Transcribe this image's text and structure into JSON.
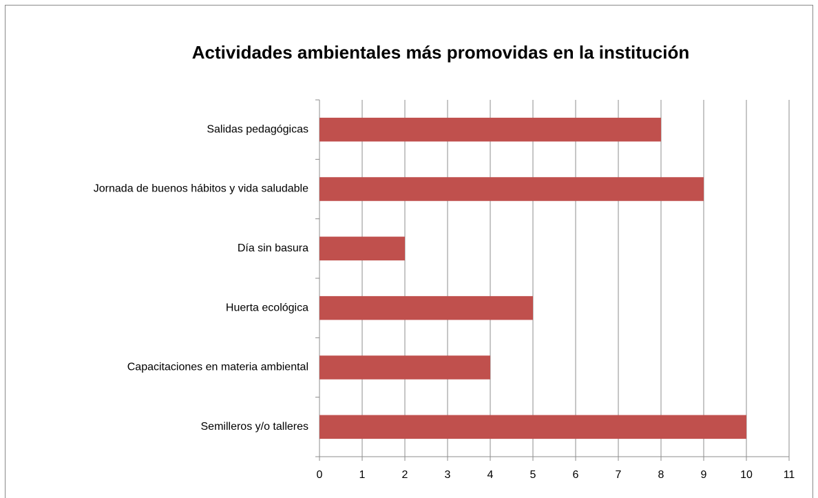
{
  "chart_data": {
    "type": "hbar",
    "title": "Actividades ambientales más promovidas en la institución",
    "categories": [
      "Salidas pedagógicas",
      "Jornada de buenos hábitos y vida saludable",
      "Día sin basura",
      "Huerta ecológica",
      "Capacitaciones en materia ambiental",
      "Semilleros y/o talleres"
    ],
    "values": [
      8,
      9,
      2,
      5,
      4,
      10
    ],
    "color": "#c0504d",
    "xlim": [
      0,
      11
    ],
    "xticks": [
      0,
      1,
      2,
      3,
      4,
      5,
      6,
      7,
      8,
      9,
      10,
      11
    ],
    "grid": true
  }
}
